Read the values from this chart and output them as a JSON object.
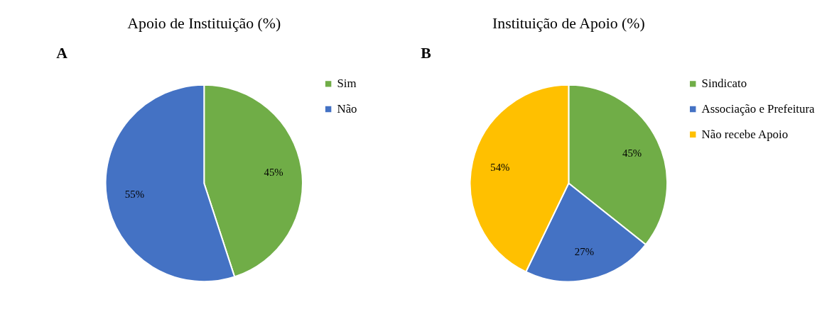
{
  "chart_data": [
    {
      "type": "pie",
      "title": "Apoio de Instituição (%)",
      "annotations": [
        "A"
      ],
      "categories": [
        "Sim",
        "Não"
      ],
      "values": [
        45,
        55
      ],
      "colors": [
        "#70ad47",
        "#4472c4"
      ],
      "value_labels": [
        "45%",
        "55%"
      ],
      "legend": "right"
    },
    {
      "type": "pie",
      "title": "Instituição de Apoio (%)",
      "annotations": [
        "B"
      ],
      "categories": [
        "Sindicato",
        "Associação e Prefeitura",
        "Não recebe Apoio"
      ],
      "values": [
        45,
        27,
        54
      ],
      "colors": [
        "#70ad47",
        "#4472c4",
        "#ffc000"
      ],
      "value_labels": [
        "45%",
        "27%",
        "54%"
      ],
      "legend": "right"
    }
  ]
}
